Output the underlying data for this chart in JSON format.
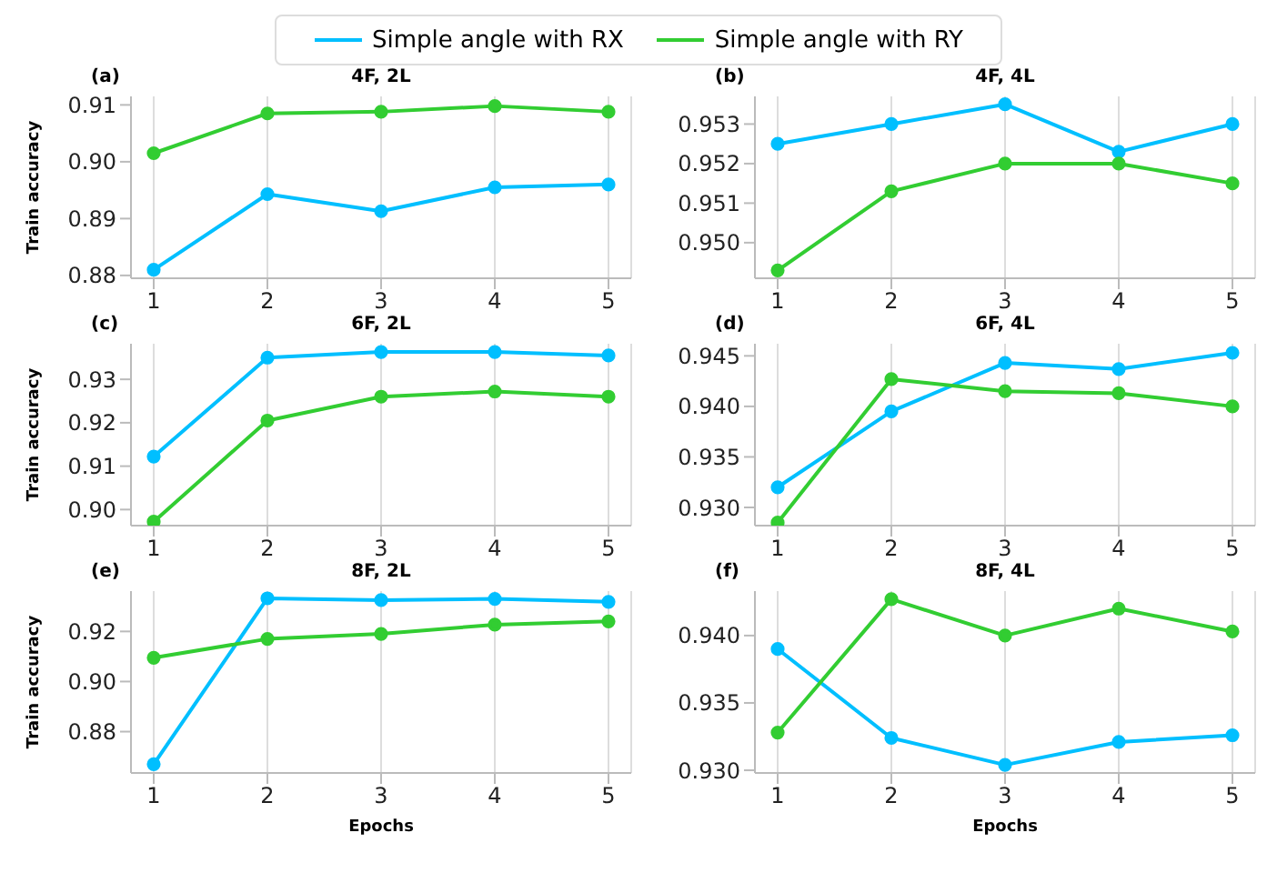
{
  "chart_data": [
    {
      "type": "line",
      "title": "4F, 2L",
      "ylabel": "Train accuracy",
      "annotations": [
        "(a)"
      ],
      "x": [
        1,
        2,
        3,
        4,
        5
      ],
      "xlim": [
        0.8,
        5.2
      ],
      "xticks": [
        1,
        2,
        3,
        4,
        5
      ],
      "ylim": [
        0.8795,
        0.9115
      ],
      "yticks": [
        0.88,
        0.89,
        {
          "value": 0.9,
          "label": "0.90"
        },
        0.91
      ],
      "grid": "x",
      "legend": "top",
      "marker": "circle",
      "series": [
        {
          "name": "Simple angle with RX",
          "color": "#00bfff",
          "values": [
            0.881,
            0.8943,
            0.8913,
            0.8955,
            0.896
          ]
        },
        {
          "name": "Simple angle with RY",
          "color": "#32cd32",
          "values": [
            0.9015,
            0.9085,
            0.9088,
            0.9098,
            0.9088
          ]
        }
      ]
    },
    {
      "type": "line",
      "title": "4F, 4L",
      "annotations": [
        "(b)"
      ],
      "x": [
        1,
        2,
        3,
        4,
        5
      ],
      "xlim": [
        0.8,
        5.2
      ],
      "xticks": [
        1,
        2,
        3,
        4,
        5
      ],
      "ylim": [
        0.9491,
        0.9537
      ],
      "yticks": [
        {
          "value": 0.95,
          "label": "0.950"
        },
        0.951,
        0.952,
        0.953
      ],
      "grid": "x",
      "marker": "circle",
      "series": [
        {
          "color": "#00bfff",
          "values": [
            0.9525,
            0.953,
            0.9535,
            0.9523,
            0.953
          ]
        },
        {
          "color": "#32cd32",
          "values": [
            0.9493,
            0.9513,
            0.952,
            0.952,
            0.9515
          ]
        }
      ]
    },
    {
      "type": "line",
      "title": "6F, 2L",
      "ylabel": "Train accuracy",
      "annotations": [
        "(c)"
      ],
      "x": [
        1,
        2,
        3,
        4,
        5
      ],
      "xlim": [
        0.8,
        5.2
      ],
      "xticks": [
        1,
        2,
        3,
        4,
        5
      ],
      "ylim": [
        0.8963,
        0.9382
      ],
      "yticks": [
        {
          "value": 0.9,
          "label": "0.90"
        },
        0.91,
        0.92,
        0.93
      ],
      "grid": "x",
      "marker": "circle",
      "series": [
        {
          "color": "#00bfff",
          "values": [
            0.9122,
            0.935,
            0.9363,
            0.9363,
            0.9355
          ]
        },
        {
          "color": "#32cd32",
          "values": [
            0.8972,
            0.9205,
            0.926,
            0.9272,
            0.926
          ]
        }
      ]
    },
    {
      "type": "line",
      "title": "6F, 4L",
      "annotations": [
        "(d)"
      ],
      "x": [
        1,
        2,
        3,
        4,
        5
      ],
      "xlim": [
        0.8,
        5.2
      ],
      "xticks": [
        1,
        2,
        3,
        4,
        5
      ],
      "ylim": [
        0.9282,
        0.9462
      ],
      "yticks": [
        {
          "value": 0.93,
          "label": "0.930"
        },
        0.935,
        {
          "value": 0.94,
          "label": "0.940"
        },
        0.945
      ],
      "grid": "x",
      "marker": "circle",
      "series": [
        {
          "color": "#00bfff",
          "values": [
            0.932,
            0.9395,
            0.9443,
            0.9437,
            0.9453
          ]
        },
        {
          "color": "#32cd32",
          "values": [
            0.9285,
            0.9427,
            0.9415,
            0.9413,
            0.94
          ]
        }
      ]
    },
    {
      "type": "line",
      "title": "8F, 2L",
      "xlabel": "Epochs",
      "ylabel": "Train accuracy",
      "annotations": [
        "(e)"
      ],
      "x": [
        1,
        2,
        3,
        4,
        5
      ],
      "xlim": [
        0.8,
        5.2
      ],
      "xticks": [
        1,
        2,
        3,
        4,
        5
      ],
      "ylim": [
        0.8635,
        0.9361
      ],
      "yticks": [
        0.88,
        {
          "value": 0.9,
          "label": "0.90"
        },
        0.92
      ],
      "grid": "x",
      "marker": "circle",
      "series": [
        {
          "color": "#00bfff",
          "values": [
            0.867,
            0.9332,
            0.9325,
            0.933,
            0.9318
          ]
        },
        {
          "color": "#32cd32",
          "values": [
            0.9095,
            0.917,
            0.919,
            0.9227,
            0.924
          ]
        }
      ]
    },
    {
      "type": "line",
      "title": "8F, 4L",
      "xlabel": "Epochs",
      "annotations": [
        "(f)"
      ],
      "x": [
        1,
        2,
        3,
        4,
        5
      ],
      "xlim": [
        0.8,
        5.2
      ],
      "xticks": [
        1,
        2,
        3,
        4,
        5
      ],
      "ylim": [
        0.9298,
        0.9433
      ],
      "yticks": [
        {
          "value": 0.93,
          "label": "0.930"
        },
        0.935,
        {
          "value": 0.94,
          "label": "0.940"
        }
      ],
      "grid": "x",
      "marker": "circle",
      "series": [
        {
          "color": "#00bfff",
          "values": [
            0.939,
            0.9324,
            0.9304,
            0.9321,
            0.9326
          ]
        },
        {
          "color": "#32cd32",
          "values": [
            0.9328,
            0.9427,
            0.94,
            0.942,
            0.9403
          ]
        }
      ]
    }
  ]
}
